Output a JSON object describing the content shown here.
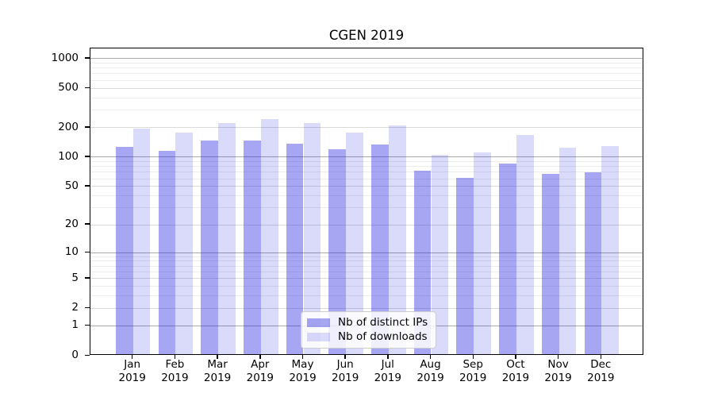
{
  "title": "CGEN 2019",
  "chart_data": {
    "type": "bar",
    "title": "CGEN 2019",
    "categories": [
      "Jan 2019",
      "Feb 2019",
      "Mar 2019",
      "Apr 2019",
      "May 2019",
      "Jun 2019",
      "Jul 2019",
      "Aug 2019",
      "Sep 2019",
      "Oct 2019",
      "Nov 2019",
      "Dec 2019"
    ],
    "months": [
      "Jan",
      "Feb",
      "Mar",
      "Apr",
      "May",
      "Jun",
      "Jul",
      "Aug",
      "Sep",
      "Oct",
      "Nov",
      "Dec"
    ],
    "year": "2019",
    "series": [
      {
        "name": "Nb of distinct IPs",
        "values": [
          122,
          111,
          142,
          143,
          132,
          116,
          130,
          70,
          59,
          83,
          65,
          68
        ]
      },
      {
        "name": "Nb of downloads",
        "values": [
          188,
          171,
          214,
          236,
          214,
          171,
          203,
          101,
          108,
          163,
          121,
          125
        ]
      }
    ],
    "yscale": "log1p",
    "yticks": [
      0,
      1,
      2,
      5,
      10,
      20,
      50,
      100,
      200,
      500,
      1000
    ],
    "ylim": [
      0,
      1260
    ],
    "grid": true,
    "legend_position": "bottom-center"
  },
  "legend": {
    "items": [
      {
        "label": "Nb of distinct IPs",
        "key": "ips"
      },
      {
        "label": "Nb of downloads",
        "key": "downloads"
      }
    ]
  },
  "colors": {
    "ips_bar": "rgba(38,38,224,0.41)",
    "downloads_bar": "rgba(8,8,220,0.15)",
    "grid_major": "#ababab",
    "grid_mid": "#dadada",
    "grid_minor": "#ececec",
    "axis": "#000000",
    "legend_border": "#cccccc"
  }
}
